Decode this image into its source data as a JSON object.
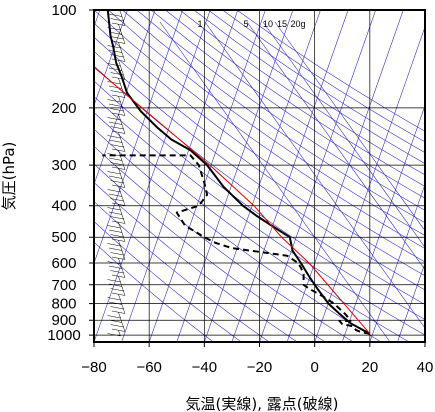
{
  "chart_data": {
    "type": "line",
    "diagram": "skew-T log-P",
    "xlabel": "気温(実線), 露点(破線)",
    "ylabel": "気圧(hPa)",
    "xlim": [
      -80,
      40
    ],
    "ylim": [
      1050,
      100
    ],
    "y_scale": "log",
    "x_ticks": [
      -80,
      -60,
      -40,
      -20,
      0,
      20,
      40
    ],
    "x_tick_labels": [
      "−80",
      "−60",
      "−40",
      "−20",
      "0",
      "20",
      "40"
    ],
    "y_ticks": [
      100,
      200,
      300,
      400,
      500,
      600,
      700,
      800,
      900,
      1000
    ],
    "y_tick_labels": [
      "100",
      "200",
      "300",
      "400",
      "500",
      "600",
      "700",
      "800",
      "900",
      "1000"
    ],
    "mixing_ratio_labels": [
      "1",
      "5",
      "10",
      "15",
      "20g"
    ],
    "mixing_ratio_values": [
      1,
      5,
      10,
      15,
      20
    ],
    "colors": {
      "temperature": "#000000",
      "dewpoint": "#000000",
      "parcel": "#e00000",
      "thermo_lines": "#3333cc",
      "grid": "#000000"
    },
    "series": [
      {
        "role": "temperature",
        "style": "solid",
        "points": [
          [
            20,
            990
          ],
          [
            17,
            960
          ],
          [
            13,
            920
          ],
          [
            9,
            860
          ],
          [
            5,
            800
          ],
          [
            1,
            720
          ],
          [
            -2,
            660
          ],
          [
            -5,
            600
          ],
          [
            -8,
            550
          ],
          [
            -9,
            500
          ],
          [
            -14,
            470
          ],
          [
            -21,
            430
          ],
          [
            -26,
            400
          ],
          [
            -33,
            350
          ],
          [
            -39,
            300
          ],
          [
            -45,
            270
          ],
          [
            -52,
            250
          ],
          [
            -57,
            230
          ],
          [
            -63,
            205
          ],
          [
            -68,
            180
          ],
          [
            -70,
            160
          ],
          [
            -72,
            145
          ],
          [
            -73,
            130
          ],
          [
            -74,
            120
          ],
          [
            -74.5,
            110
          ],
          [
            -75,
            100
          ]
        ]
      },
      {
        "role": "dewpoint",
        "style": "dashed",
        "points": [
          [
            20,
            990
          ],
          [
            17,
            980
          ],
          [
            15,
            965
          ],
          [
            14,
            940
          ],
          [
            10,
            925
          ],
          [
            9,
            905
          ],
          [
            13,
            905
          ],
          [
            12,
            880
          ],
          [
            11,
            860
          ],
          [
            7,
            800
          ],
          [
            3,
            760
          ],
          [
            -2,
            720
          ],
          [
            -4,
            700
          ],
          [
            -4,
            650
          ],
          [
            -5,
            620
          ],
          [
            -6,
            600
          ],
          [
            -10,
            570
          ],
          [
            -30,
            540
          ],
          [
            -36,
            520
          ],
          [
            -40,
            500
          ],
          [
            -47,
            460
          ],
          [
            -50,
            420
          ],
          [
            -42,
            400
          ],
          [
            -39,
            370
          ],
          [
            -40,
            340
          ],
          [
            -42,
            300
          ],
          [
            -45,
            280
          ],
          [
            -77,
            280
          ]
        ]
      },
      {
        "role": "parcel",
        "style": "solid",
        "points": [
          [
            20,
            990
          ],
          [
            -2,
            600
          ],
          [
            -12,
            500
          ],
          [
            -22,
            400
          ],
          [
            -38,
            300
          ],
          [
            -80,
            150
          ]
        ]
      }
    ],
    "wind_barbs": "present along left edge, 1000-100 hPa"
  }
}
